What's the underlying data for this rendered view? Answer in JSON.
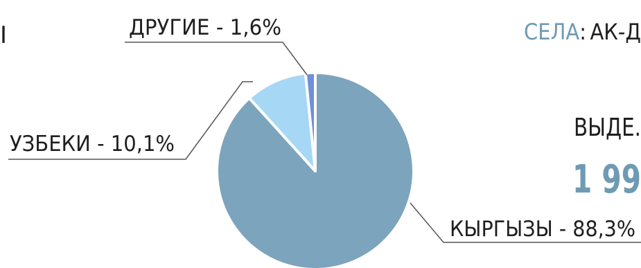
{
  "chart_data": {
    "type": "pie",
    "title": "",
    "slices": [
      {
        "label": "КЫРГЫЗЫ - 88,3%",
        "name": "КЫРГЫЗЫ",
        "value": 88.3,
        "color": "#7ca4bc"
      },
      {
        "label": "УЗБЕКИ - 10,1%",
        "name": "УЗБЕКИ",
        "value": 10.1,
        "color": "#a6d7f5"
      },
      {
        "label": "ДРУГИЕ - 1,6%",
        "name": "ДРУГИЕ",
        "value": 1.6,
        "color": "#6f8fd8"
      }
    ]
  },
  "side_text": {
    "left_cut": "I",
    "sela_label": "СЕЛА",
    "sela_colon": ":",
    "sela_value": "АК-Д",
    "vyde": "ВЫДЕ.",
    "number": "1 99"
  },
  "colors": {
    "accent_blue": "#6e9ab4",
    "text": "#1f1f1f",
    "leader": "#555555"
  }
}
